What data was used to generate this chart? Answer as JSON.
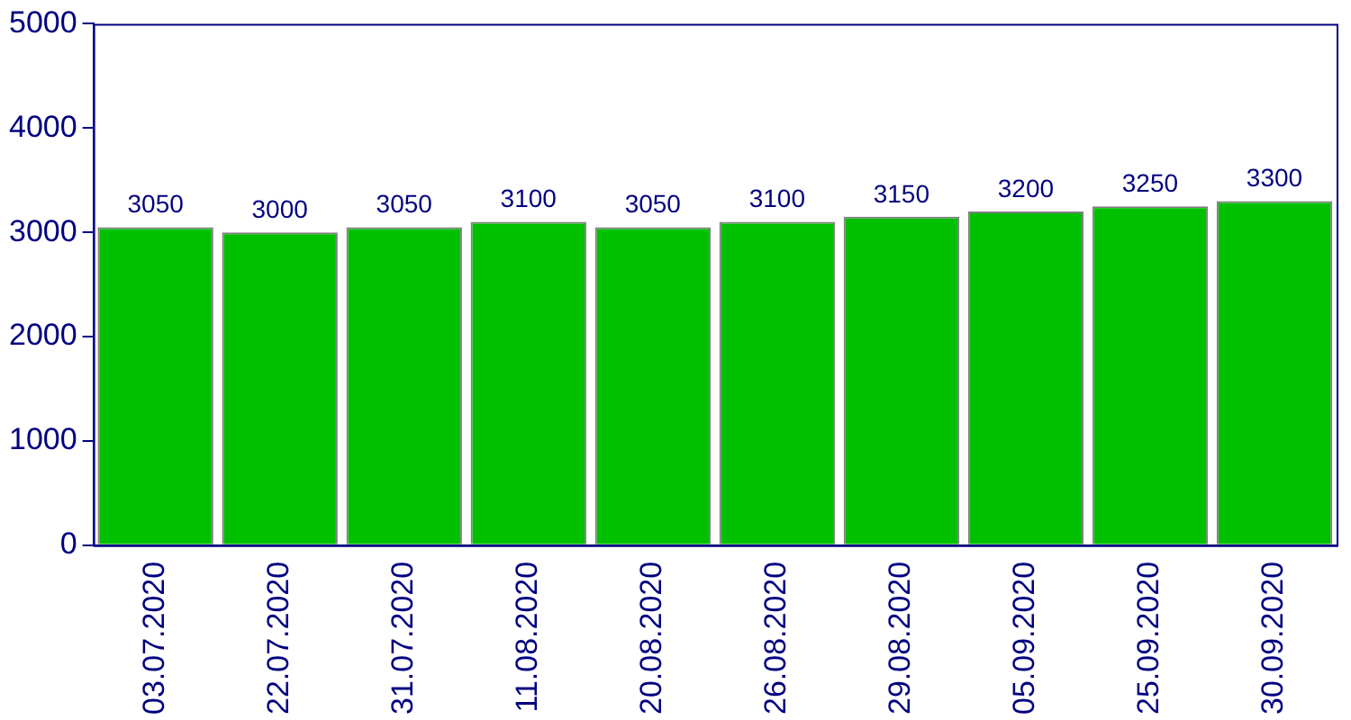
{
  "chart_data": {
    "type": "bar",
    "categories": [
      "03.07.2020",
      "22.07.2020",
      "31.07.2020",
      "11.08.2020",
      "20.08.2020",
      "26.08.2020",
      "29.08.2020",
      "05.09.2020",
      "25.09.2020",
      "30.09.2020"
    ],
    "values": [
      3050,
      3000,
      3050,
      3100,
      3050,
      3100,
      3150,
      3200,
      3250,
      3300
    ],
    "color": "#00c000",
    "ylim": [
      0,
      5000
    ],
    "yticks": [
      0,
      1000,
      2000,
      3000,
      4000,
      5000
    ],
    "grid": false,
    "legend": false,
    "data_labels": true
  }
}
